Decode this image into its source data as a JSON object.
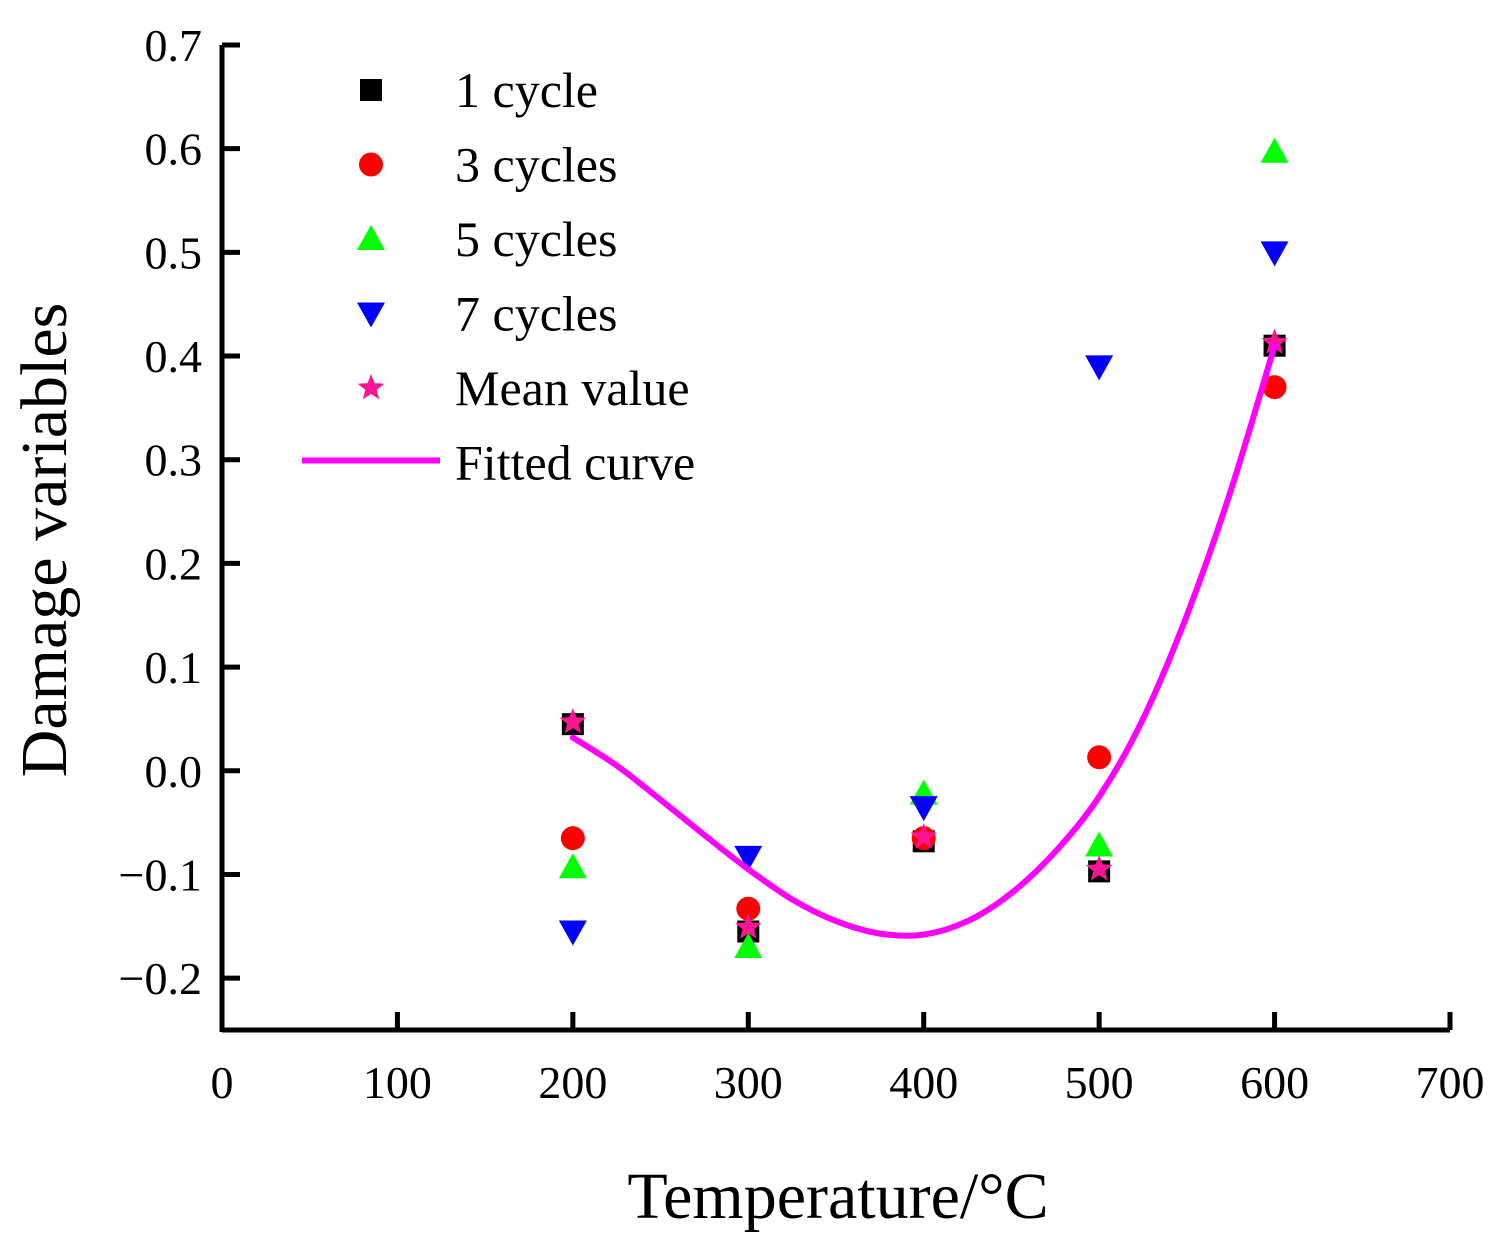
{
  "chart_data": {
    "type": "scatter",
    "title": "",
    "xlabel": "Temperature/°C",
    "ylabel": "Damage variables",
    "xlim": [
      0,
      700
    ],
    "ylim": [
      -0.25,
      0.7
    ],
    "xticks": [
      0,
      100,
      200,
      300,
      400,
      500,
      600,
      700
    ],
    "xtick_labels": [
      "0",
      "100",
      "200",
      "300",
      "400",
      "500",
      "600",
      "700"
    ],
    "yticks": [
      -0.2,
      -0.1,
      0.0,
      0.1,
      0.2,
      0.3,
      0.4,
      0.5,
      0.6,
      0.7
    ],
    "ytick_labels": [
      "−0.2",
      "−0.1",
      "0.0",
      "0.1",
      "0.2",
      "0.3",
      "0.4",
      "0.5",
      "0.6",
      "0.7"
    ],
    "grid": false,
    "legend_position": "top-left",
    "x": [
      200,
      300,
      400,
      500,
      600
    ],
    "series": [
      {
        "name": "1 cycle",
        "marker": "square",
        "color": "#000000",
        "values": [
          0.045,
          -0.155,
          -0.068,
          -0.097,
          0.41
        ]
      },
      {
        "name": "3 cycles",
        "marker": "circle",
        "color": "#ff0000",
        "values": [
          -0.065,
          -0.133,
          -0.065,
          0.013,
          0.37
        ]
      },
      {
        "name": "5 cycles",
        "marker": "triangle-up",
        "color": "#00ff00",
        "values": [
          -0.093,
          -0.17,
          -0.022,
          -0.072,
          0.597
        ]
      },
      {
        "name": "7 cycles",
        "marker": "triangle-down",
        "color": "#0000ff",
        "values": [
          -0.155,
          -0.083,
          -0.035,
          0.39,
          0.5
        ]
      },
      {
        "name": "Mean value",
        "marker": "star",
        "color": "#ff1493",
        "values": [
          0.047,
          -0.151,
          -0.064,
          -0.095,
          0.413
        ]
      }
    ],
    "fitted_curve": {
      "name": "Fitted curve",
      "color": "#ff00ff",
      "x": [
        200,
        225,
        250,
        275,
        300,
        325,
        350,
        375,
        400,
        425,
        450,
        475,
        500,
        525,
        550,
        575,
        600
      ],
      "y": [
        0.032,
        0.005,
        -0.028,
        -0.062,
        -0.095,
        -0.124,
        -0.145,
        -0.157,
        -0.158,
        -0.145,
        -0.118,
        -0.078,
        -0.025,
        0.05,
        0.15,
        0.27,
        0.41
      ]
    }
  }
}
